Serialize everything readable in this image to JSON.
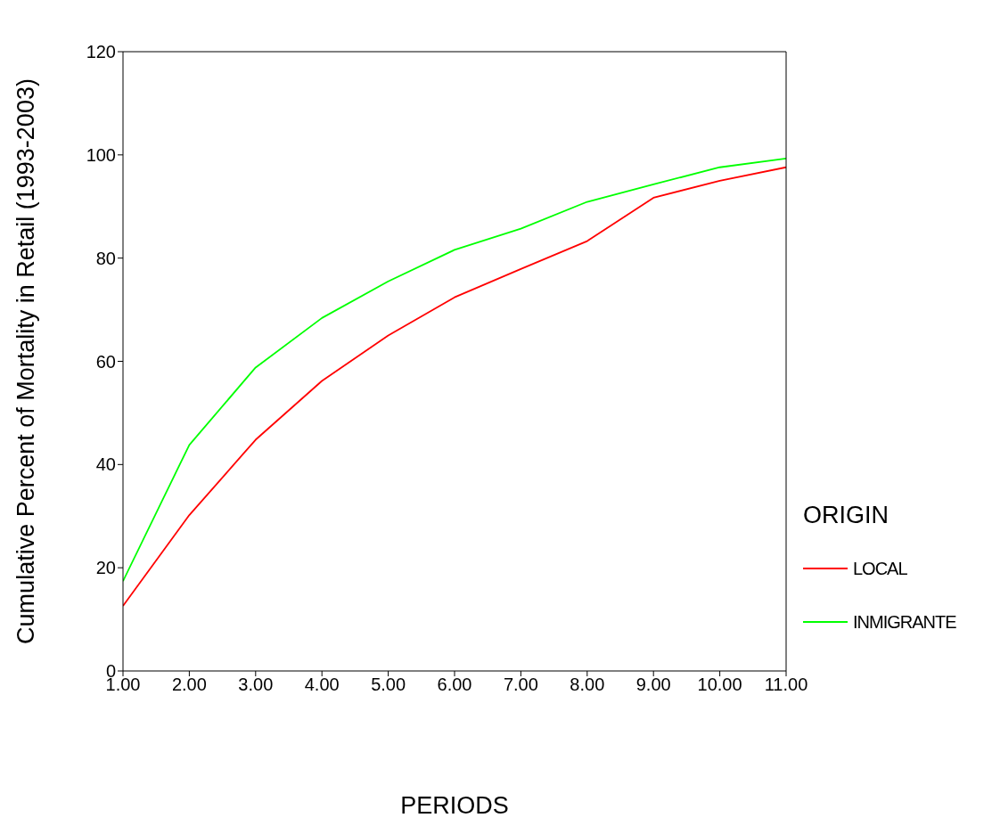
{
  "chart_data": {
    "type": "line",
    "xlabel": "PERIODS",
    "ylabel": "Cumulative Percent of Mortality in Retail (1993-2003)",
    "x": [
      1,
      2,
      3,
      4,
      5,
      6,
      7,
      8,
      9,
      10,
      11
    ],
    "series": [
      {
        "name": "LOCAL",
        "color": "#ff0000",
        "values": [
          12.6,
          30.2,
          44.8,
          56.2,
          65.0,
          72.4,
          77.9,
          83.3,
          91.7,
          95.0,
          97.6
        ]
      },
      {
        "name": "INMIGRANTE",
        "color": "#00ff00",
        "values": [
          17.4,
          43.8,
          58.8,
          68.4,
          75.5,
          81.6,
          85.7,
          90.9,
          94.3,
          97.6,
          99.3
        ]
      }
    ],
    "legend_title": "ORIGIN",
    "legend": "right",
    "marker": "none",
    "line_style": "solid",
    "grid": false,
    "xlim": [
      1,
      11
    ],
    "xticks": [
      {
        "value": 1,
        "label": "1.00"
      },
      {
        "value": 2,
        "label": "2.00"
      },
      {
        "value": 3,
        "label": "3.00"
      },
      {
        "value": 4,
        "label": "4.00"
      },
      {
        "value": 5,
        "label": "5.00"
      },
      {
        "value": 6,
        "label": "6.00"
      },
      {
        "value": 7,
        "label": "7.00"
      },
      {
        "value": 8,
        "label": "8.00"
      },
      {
        "value": 9,
        "label": "9.00"
      },
      {
        "value": 10,
        "label": "10.00"
      },
      {
        "value": 11,
        "label": "11.00"
      }
    ],
    "ylim": [
      0,
      120
    ],
    "yticks": [
      0,
      20,
      40,
      60,
      80,
      100,
      120
    ]
  }
}
